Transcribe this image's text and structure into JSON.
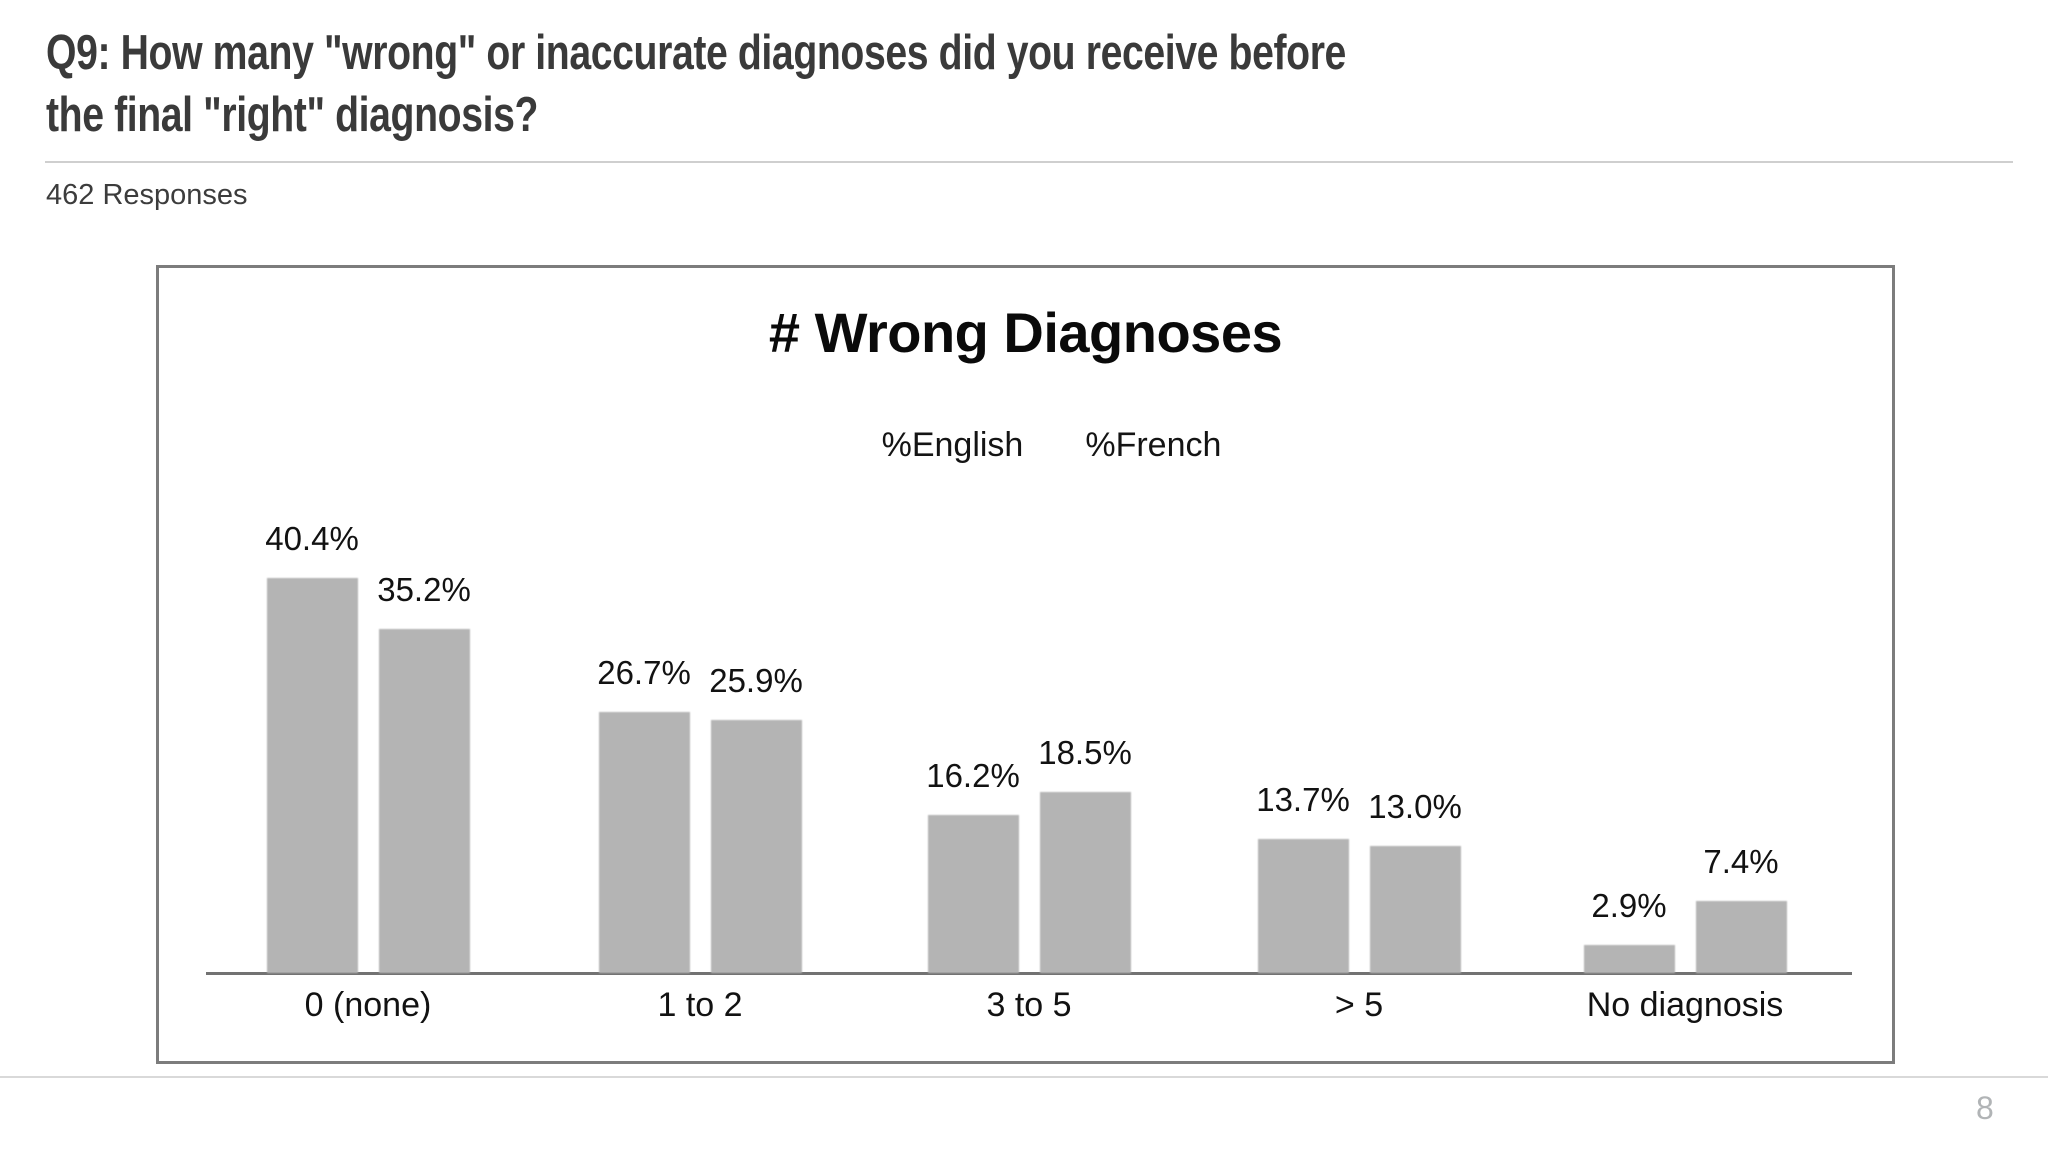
{
  "header": {
    "title_line1": "Q9: How many \"wrong\" or inaccurate diagnoses did you receive before",
    "title_line2": "the final \"right\" diagnosis?",
    "responses_label": "462 Responses"
  },
  "chart_data": {
    "type": "bar",
    "title": "# Wrong Diagnoses",
    "categories": [
      "0 (none)",
      "1 to 2",
      "3 to 5",
      "> 5",
      "No diagnosis"
    ],
    "series": [
      {
        "name": "%English",
        "values": [
          40.4,
          26.7,
          16.2,
          13.7,
          2.9
        ]
      },
      {
        "name": "%French",
        "values": [
          35.2,
          25.9,
          18.5,
          13.0,
          7.4
        ]
      }
    ],
    "value_label_suffix": "%",
    "ylim": [
      0,
      45
    ],
    "grid": false,
    "legend_position": "top-center",
    "bar_color": "#b4b4b4"
  },
  "footer": {
    "page_number": "8"
  }
}
